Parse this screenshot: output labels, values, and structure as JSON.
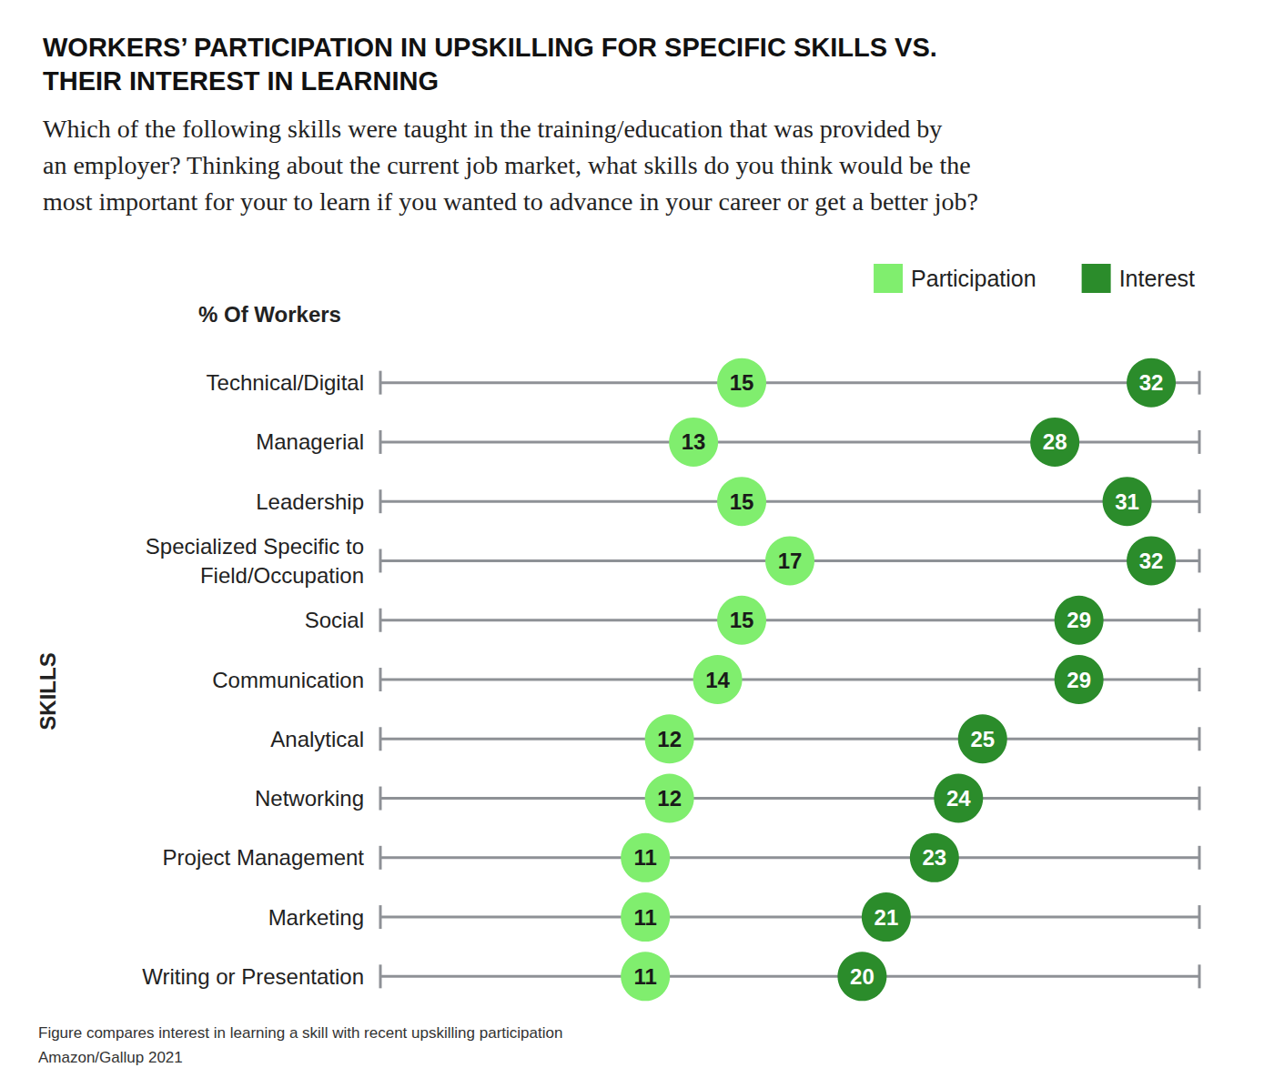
{
  "chart_data": {
    "type": "dumbbell",
    "title": "WORKERS’ PARTICIPATION IN UPSKILLING FOR SPECIFIC SKILLS VS.\nTHEIR INTEREST IN LEARNING",
    "subtitle": "Which of the following skills were taught in the training/education that was provided by\nan employer? Thinking about the current job market, what skills do you think would be the\nmost important for your to learn if you wanted to advance in your career or get a better job?",
    "xlabel": "% Of Workers",
    "ylabel": "SKILLS",
    "annotations": [
      "Figure compares interest in learning a skill with recent upskilling participation",
      "Amazon/Gallup 2021"
    ],
    "categories": [
      "Technical/Digital",
      "Managerial",
      "Leadership",
      "Specialized Specific to\nField/Occupation",
      "Social",
      "Communication",
      "Analytical",
      "Networking",
      "Project Management",
      "Marketing",
      "Writing or Presentation"
    ],
    "series": [
      {
        "name": "Participation",
        "color": "#80ee6e",
        "values": [
          15,
          13,
          15,
          17,
          15,
          14,
          12,
          12,
          11,
          11,
          11
        ]
      },
      {
        "name": "Interest",
        "color": "#2b8c2b",
        "values": [
          32,
          28,
          31,
          32,
          29,
          29,
          25,
          24,
          23,
          21,
          20
        ]
      }
    ],
    "orientation": "horizontal",
    "xlim": [
      0,
      34
    ],
    "xticks": [
      0,
      34
    ],
    "tick_labels": false,
    "data_labels": true,
    "legend": "top-right"
  }
}
